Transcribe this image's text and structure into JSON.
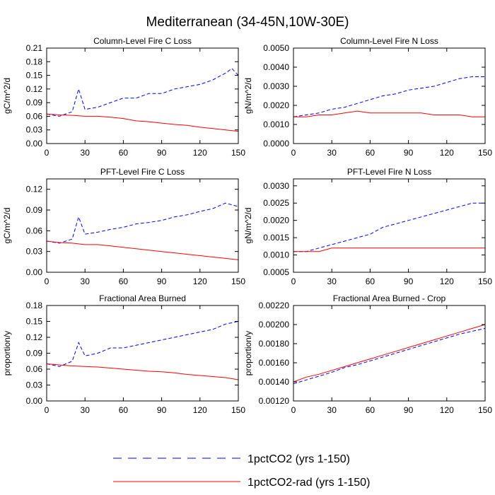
{
  "figure": {
    "title": "Mediterranean (34-45N,10W-30E)",
    "legend": [
      {
        "label": "1pctCO2 (yrs 1-150)",
        "color": "#0000ff",
        "dash": "dashed"
      },
      {
        "label": "1pctCO2-rad (yrs 1-150)",
        "color": "#ff0000",
        "dash": "solid"
      }
    ]
  },
  "chart_data": [
    {
      "type": "line",
      "title": "Column-Level Fire C Loss",
      "ylabel": "gC/m^2/d",
      "xlim": [
        0,
        150
      ],
      "ylim": [
        0,
        0.21
      ],
      "xticks": [
        "0",
        "30",
        "60",
        "90",
        "120",
        "150"
      ],
      "yticks": [
        "0.00",
        "0.03",
        "0.06",
        "0.09",
        "0.12",
        "0.15",
        "0.18",
        "0.21"
      ],
      "series": [
        {
          "name": "1pctCO2 (yrs 1-150)",
          "color": "#0000ff",
          "dash": "dashed",
          "x": [
            0,
            10,
            20,
            25,
            30,
            40,
            50,
            60,
            70,
            80,
            90,
            100,
            110,
            120,
            130,
            140,
            145,
            150
          ],
          "y": [
            0.065,
            0.06,
            0.07,
            0.12,
            0.075,
            0.08,
            0.09,
            0.1,
            0.1,
            0.11,
            0.11,
            0.12,
            0.125,
            0.13,
            0.14,
            0.155,
            0.165,
            0.15
          ]
        },
        {
          "name": "1pctCO2-rad (yrs 1-150)",
          "color": "#ff0000",
          "dash": "solid",
          "x": [
            0,
            10,
            20,
            30,
            40,
            50,
            60,
            70,
            80,
            90,
            100,
            110,
            120,
            130,
            140,
            150
          ],
          "y": [
            0.065,
            0.063,
            0.062,
            0.06,
            0.06,
            0.058,
            0.055,
            0.05,
            0.048,
            0.045,
            0.042,
            0.04,
            0.036,
            0.033,
            0.03,
            0.027
          ]
        }
      ]
    },
    {
      "type": "line",
      "title": "Column-Level Fire N Loss",
      "ylabel": "gN/m^2/d",
      "xlim": [
        0,
        150
      ],
      "ylim": [
        0,
        0.005
      ],
      "xticks": [
        "0",
        "30",
        "60",
        "90",
        "120",
        "150"
      ],
      "yticks": [
        "0.0000",
        "0.0010",
        "0.0020",
        "0.0030",
        "0.0040",
        "0.0050"
      ],
      "series": [
        {
          "name": "1pctCO2 (yrs 1-150)",
          "color": "#0000ff",
          "dash": "dashed",
          "x": [
            0,
            10,
            20,
            30,
            40,
            50,
            60,
            70,
            80,
            90,
            100,
            110,
            120,
            130,
            140,
            150
          ],
          "y": [
            0.0014,
            0.0015,
            0.0016,
            0.0018,
            0.0019,
            0.0021,
            0.0023,
            0.0025,
            0.0026,
            0.0028,
            0.0029,
            0.003,
            0.0032,
            0.0034,
            0.0035,
            0.0035
          ]
        },
        {
          "name": "1pctCO2-rad (yrs 1-150)",
          "color": "#ff0000",
          "dash": "solid",
          "x": [
            0,
            10,
            20,
            30,
            40,
            50,
            60,
            70,
            80,
            90,
            100,
            110,
            120,
            130,
            140,
            150
          ],
          "y": [
            0.0014,
            0.0014,
            0.0015,
            0.0015,
            0.0016,
            0.0017,
            0.0016,
            0.0016,
            0.0016,
            0.0016,
            0.0016,
            0.0015,
            0.0015,
            0.0015,
            0.0014,
            0.0014
          ]
        }
      ]
    },
    {
      "type": "line",
      "title": "PFT-Level Fire C Loss",
      "ylabel": "gC/m^2/d",
      "xlim": [
        0,
        150
      ],
      "ylim": [
        0,
        0.135
      ],
      "xticks": [
        "0",
        "30",
        "60",
        "90",
        "120",
        "150"
      ],
      "yticks": [
        "0.00",
        "0.03",
        "0.06",
        "0.09",
        "0.12"
      ],
      "series": [
        {
          "name": "1pctCO2 (yrs 1-150)",
          "color": "#0000ff",
          "dash": "dashed",
          "x": [
            0,
            10,
            20,
            25,
            30,
            40,
            50,
            60,
            70,
            80,
            90,
            100,
            110,
            120,
            130,
            140,
            150
          ],
          "y": [
            0.045,
            0.042,
            0.048,
            0.08,
            0.055,
            0.058,
            0.062,
            0.065,
            0.07,
            0.072,
            0.075,
            0.08,
            0.083,
            0.088,
            0.092,
            0.1,
            0.095
          ]
        },
        {
          "name": "1pctCO2-rad (yrs 1-150)",
          "color": "#ff0000",
          "dash": "solid",
          "x": [
            0,
            10,
            20,
            30,
            40,
            50,
            60,
            70,
            80,
            90,
            100,
            110,
            120,
            130,
            140,
            150
          ],
          "y": [
            0.045,
            0.043,
            0.042,
            0.04,
            0.04,
            0.038,
            0.036,
            0.034,
            0.032,
            0.03,
            0.028,
            0.026,
            0.024,
            0.022,
            0.02,
            0.018
          ]
        }
      ]
    },
    {
      "type": "line",
      "title": "PFT-Level Fire N Loss",
      "ylabel": "gN/m^2/d",
      "xlim": [
        0,
        150
      ],
      "ylim": [
        0.0005,
        0.0032
      ],
      "xticks": [
        "0",
        "30",
        "60",
        "90",
        "120",
        "150"
      ],
      "yticks": [
        "0.0005",
        "0.0010",
        "0.0015",
        "0.0020",
        "0.0025",
        "0.0030"
      ],
      "series": [
        {
          "name": "1pctCO2 (yrs 1-150)",
          "color": "#0000ff",
          "dash": "dashed",
          "x": [
            0,
            10,
            20,
            30,
            40,
            50,
            60,
            70,
            80,
            90,
            100,
            110,
            120,
            130,
            140,
            150
          ],
          "y": [
            0.0011,
            0.0011,
            0.0012,
            0.0013,
            0.0014,
            0.0015,
            0.0016,
            0.0018,
            0.0019,
            0.002,
            0.0021,
            0.0022,
            0.0023,
            0.0024,
            0.0025,
            0.0025
          ]
        },
        {
          "name": "1pctCO2-rad (yrs 1-150)",
          "color": "#ff0000",
          "dash": "solid",
          "x": [
            0,
            10,
            20,
            30,
            40,
            50,
            60,
            70,
            80,
            90,
            100,
            110,
            120,
            130,
            140,
            150
          ],
          "y": [
            0.0011,
            0.0011,
            0.0011,
            0.0012,
            0.0012,
            0.0012,
            0.0012,
            0.0012,
            0.0012,
            0.0012,
            0.0012,
            0.0012,
            0.0012,
            0.0012,
            0.0012,
            0.0012
          ]
        }
      ]
    },
    {
      "type": "line",
      "title": "Fractional Area Burned",
      "ylabel": "proportion/y",
      "xlim": [
        0,
        150
      ],
      "ylim": [
        0,
        0.18
      ],
      "xticks": [
        "0",
        "30",
        "60",
        "90",
        "120",
        "150"
      ],
      "yticks": [
        "0.00",
        "0.03",
        "0.06",
        "0.09",
        "0.12",
        "0.15",
        "0.18"
      ],
      "series": [
        {
          "name": "1pctCO2 (yrs 1-150)",
          "color": "#0000ff",
          "dash": "dashed",
          "x": [
            0,
            10,
            20,
            25,
            30,
            40,
            50,
            60,
            70,
            80,
            90,
            100,
            110,
            120,
            130,
            140,
            150
          ],
          "y": [
            0.07,
            0.065,
            0.075,
            0.11,
            0.085,
            0.09,
            0.1,
            0.1,
            0.105,
            0.11,
            0.115,
            0.12,
            0.125,
            0.13,
            0.135,
            0.145,
            0.15
          ]
        },
        {
          "name": "1pctCO2-rad (yrs 1-150)",
          "color": "#ff0000",
          "dash": "solid",
          "x": [
            0,
            10,
            20,
            30,
            40,
            50,
            60,
            70,
            80,
            90,
            100,
            110,
            120,
            130,
            140,
            150
          ],
          "y": [
            0.07,
            0.068,
            0.066,
            0.065,
            0.064,
            0.062,
            0.06,
            0.058,
            0.056,
            0.055,
            0.053,
            0.05,
            0.048,
            0.046,
            0.044,
            0.04
          ]
        }
      ]
    },
    {
      "type": "line",
      "title": "Fractional Area Burned - Crop",
      "ylabel": "proportion/y",
      "xlim": [
        0,
        150
      ],
      "ylim": [
        0.0012,
        0.0022
      ],
      "xticks": [
        "0",
        "30",
        "60",
        "90",
        "120",
        "150"
      ],
      "yticks": [
        "0.00120",
        "0.00140",
        "0.00160",
        "0.00180",
        "0.00200",
        "0.00220"
      ],
      "series": [
        {
          "name": "1pctCO2 (yrs 1-150)",
          "color": "#0000ff",
          "dash": "dashed",
          "x": [
            0,
            10,
            20,
            30,
            40,
            50,
            60,
            70,
            80,
            90,
            100,
            110,
            120,
            130,
            140,
            150
          ],
          "y": [
            0.00138,
            0.00142,
            0.00146,
            0.0015,
            0.00155,
            0.00158,
            0.00162,
            0.00166,
            0.0017,
            0.00174,
            0.00178,
            0.00182,
            0.00186,
            0.0019,
            0.00193,
            0.00196
          ]
        },
        {
          "name": "1pctCO2-rad (yrs 1-150)",
          "color": "#ff0000",
          "dash": "solid",
          "x": [
            0,
            10,
            20,
            30,
            40,
            50,
            60,
            70,
            80,
            90,
            100,
            110,
            120,
            130,
            140,
            150
          ],
          "y": [
            0.0014,
            0.00145,
            0.00148,
            0.00152,
            0.00156,
            0.0016,
            0.00164,
            0.00168,
            0.00172,
            0.00176,
            0.0018,
            0.00184,
            0.00188,
            0.00192,
            0.00196,
            0.002
          ]
        }
      ]
    }
  ]
}
